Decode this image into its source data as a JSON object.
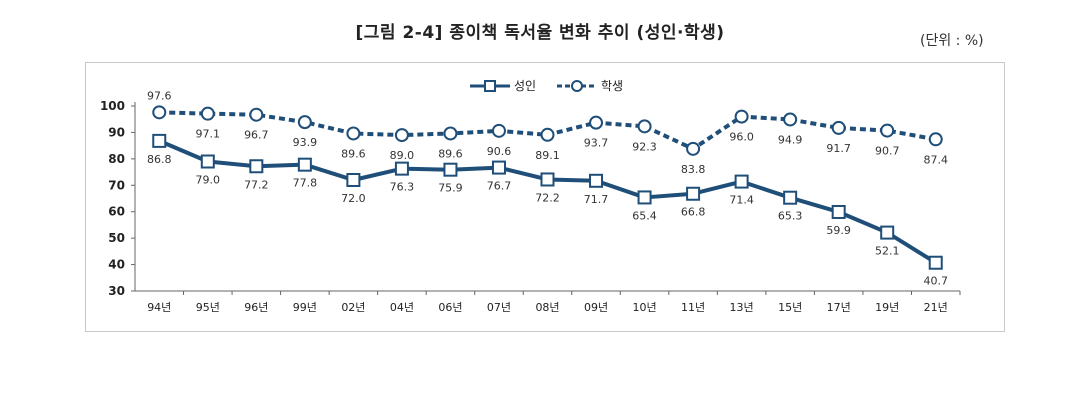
{
  "title": "[그림 2-4] 종이책 독서율 변화 추이 (성인·학생)",
  "unit": "(단위 : %)",
  "chart_data": {
    "type": "line",
    "categories": [
      "94년",
      "95년",
      "96년",
      "99년",
      "02년",
      "04년",
      "06년",
      "07년",
      "08년",
      "09년",
      "10년",
      "11년",
      "13년",
      "15년",
      "17년",
      "19년",
      "21년"
    ],
    "series": [
      {
        "name": "성인",
        "values": [
          86.8,
          79.0,
          77.2,
          77.8,
          72.0,
          76.3,
          75.9,
          76.7,
          72.2,
          71.7,
          65.4,
          66.8,
          71.4,
          65.3,
          59.9,
          52.1,
          40.7
        ],
        "style": "solid",
        "marker": "square",
        "color": "#1f4e79"
      },
      {
        "name": "학생",
        "values": [
          97.6,
          97.1,
          96.7,
          93.9,
          89.6,
          89.0,
          89.6,
          90.6,
          89.1,
          93.7,
          92.3,
          83.8,
          96.0,
          94.9,
          91.7,
          90.7,
          87.4
        ],
        "style": "dashed",
        "marker": "circle",
        "color": "#1f4e79"
      }
    ],
    "yticks": [
      "100",
      "90",
      "80",
      "70",
      "60",
      "50",
      "40",
      "30"
    ],
    "ylim": [
      30,
      100
    ],
    "legend": "top-center"
  }
}
